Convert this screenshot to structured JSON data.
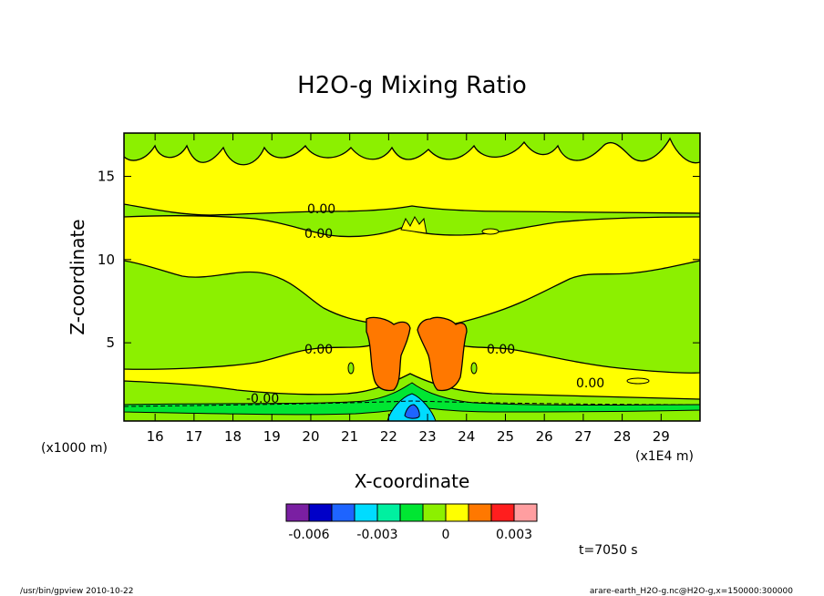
{
  "chart_data": {
    "type": "heatmap",
    "title": "H2O-g Mixing Ratio",
    "xlabel": "X-coordinate",
    "ylabel": "Z-coordinate",
    "x_unit_left": "(x1000 m)",
    "x_unit_right": "(x1E4 m)",
    "xlim": [
      15.2,
      30.0
    ],
    "ylim": [
      0.3,
      17.6
    ],
    "x_ticks": [
      "16",
      "17",
      "18",
      "19",
      "20",
      "21",
      "22",
      "23",
      "24",
      "25",
      "26",
      "27",
      "28",
      "29"
    ],
    "y_ticks": [
      "5",
      "10",
      "15"
    ],
    "contour_labels": [
      "0.00",
      "0.00",
      "0.00",
      "0.00",
      "0.00",
      "-0.00"
    ],
    "colorbar": {
      "colors": [
        "#7a1fa2",
        "#0000c8",
        "#1e64ff",
        "#00dcff",
        "#00f0a0",
        "#00e632",
        "#8cf000",
        "#ffff00",
        "#ff7800",
        "#ff1e1e",
        "#ff9ea0"
      ],
      "tick_labels": [
        "-0.006",
        "-0.003",
        "0",
        "0.003"
      ]
    },
    "time_label": "t=7050 s",
    "footer_left": "/usr/bin/gpview   2010-10-22",
    "footer_right": "arare-earth_H2O-g.nc@H2O-g,x=150000:300000"
  }
}
